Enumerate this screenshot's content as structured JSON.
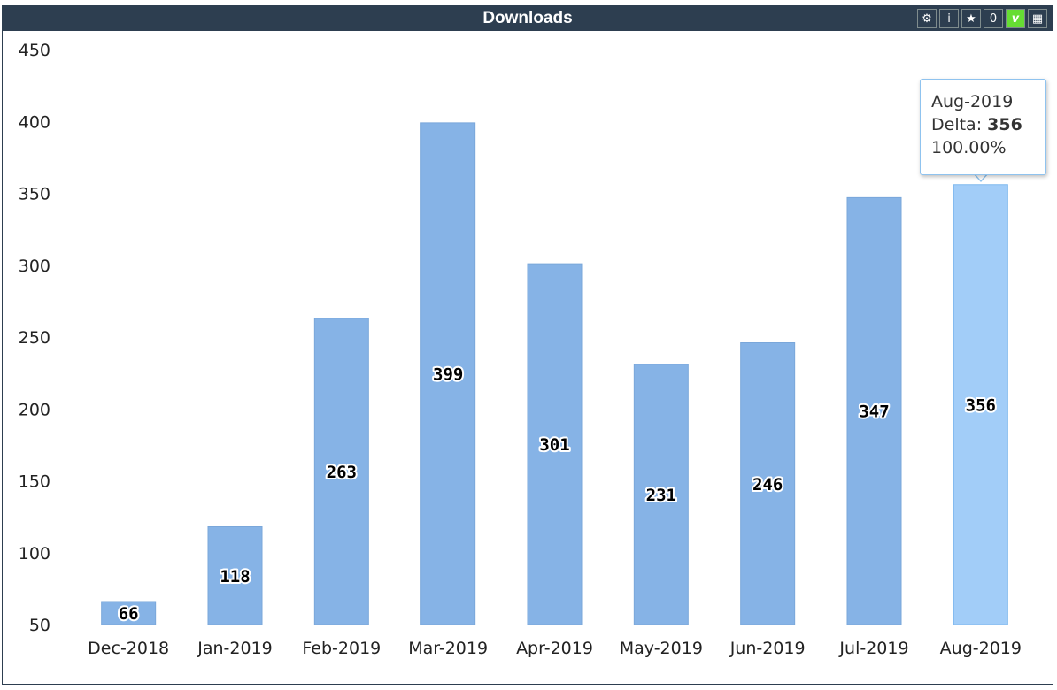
{
  "panel": {
    "title": "Downloads",
    "toolbar": [
      {
        "name": "gear-icon",
        "glyph": "⚙"
      },
      {
        "name": "info-icon",
        "glyph": "i"
      },
      {
        "name": "star-icon",
        "glyph": "★"
      },
      {
        "name": "zero-button",
        "glyph": "0"
      },
      {
        "name": "v-button",
        "glyph": "v"
      },
      {
        "name": "table-icon",
        "glyph": "▦"
      }
    ]
  },
  "colors": {
    "header": "#2d3e50",
    "bar": "#86b3e6",
    "bar_highlight": "#a2cdf8",
    "toggle_active": "#66dd33"
  },
  "tooltip": {
    "category": "Aug-2019",
    "delta_label": "Delta: ",
    "delta_value": "356",
    "percent": "100.00%"
  },
  "chart_data": {
    "type": "bar",
    "categories": [
      "Dec-2018",
      "Jan-2019",
      "Feb-2019",
      "Mar-2019",
      "Apr-2019",
      "May-2019",
      "Jun-2019",
      "Jul-2019",
      "Aug-2019"
    ],
    "values": [
      66,
      118,
      263,
      399,
      301,
      231,
      246,
      347,
      356
    ],
    "ylim": [
      50,
      450
    ],
    "yticks": [
      50,
      100,
      150,
      200,
      250,
      300,
      350,
      400,
      450
    ],
    "highlighted": "Aug-2019",
    "data_labels": true,
    "legend": "none",
    "grid": false
  }
}
